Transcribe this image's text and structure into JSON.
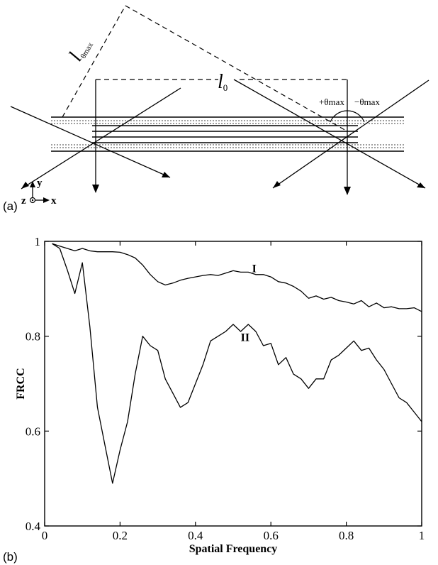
{
  "figure": {
    "panel_a": {
      "letter": "(a)",
      "labels": {
        "l_theta_main": "l",
        "l_theta_sub": "θmax",
        "l0_main": "l",
        "l0_sub": "0",
        "plus_theta": "+θmax",
        "minus_theta": "−θmax",
        "axis_y": "y",
        "axis_x": "x",
        "axis_z": "z"
      }
    },
    "panel_b": {
      "letter": "(b)"
    }
  },
  "chart_data": {
    "type": "line",
    "xlabel": "Spatial Frequency",
    "ylabel": "FRCC",
    "xlim": [
      0,
      1
    ],
    "ylim": [
      0.4,
      1
    ],
    "xticks": [
      0,
      0.2,
      0.4,
      0.6,
      0.8,
      1
    ],
    "yticks": [
      0.4,
      0.6,
      0.8,
      1
    ],
    "xtick_labels": [
      "0",
      "0.2",
      "0.4",
      "0.6",
      "0.8",
      "1"
    ],
    "ytick_labels": [
      "0.4",
      "0.6",
      "0.8",
      "1"
    ],
    "grid": false,
    "series": [
      {
        "name": "I",
        "label_at": [
          0.55,
          0.935
        ],
        "x": [
          0.02,
          0.04,
          0.06,
          0.08,
          0.1,
          0.12,
          0.14,
          0.16,
          0.18,
          0.2,
          0.22,
          0.24,
          0.26,
          0.28,
          0.3,
          0.32,
          0.34,
          0.36,
          0.38,
          0.4,
          0.42,
          0.44,
          0.46,
          0.48,
          0.5,
          0.52,
          0.54,
          0.56,
          0.58,
          0.6,
          0.62,
          0.64,
          0.66,
          0.68,
          0.7,
          0.72,
          0.74,
          0.76,
          0.78,
          0.8,
          0.82,
          0.84,
          0.86,
          0.88,
          0.9,
          0.92,
          0.94,
          0.96,
          0.98,
          1.0
        ],
        "y": [
          0.995,
          0.99,
          0.985,
          0.98,
          0.985,
          0.98,
          0.978,
          0.978,
          0.978,
          0.977,
          0.972,
          0.965,
          0.95,
          0.93,
          0.915,
          0.908,
          0.912,
          0.918,
          0.922,
          0.925,
          0.928,
          0.93,
          0.928,
          0.933,
          0.938,
          0.935,
          0.935,
          0.93,
          0.93,
          0.925,
          0.915,
          0.912,
          0.905,
          0.895,
          0.88,
          0.885,
          0.878,
          0.882,
          0.875,
          0.872,
          0.868,
          0.875,
          0.862,
          0.87,
          0.86,
          0.862,
          0.858,
          0.858,
          0.86,
          0.852
        ]
      },
      {
        "name": "II",
        "label_at": [
          0.52,
          0.79
        ],
        "x": [
          0.02,
          0.04,
          0.06,
          0.08,
          0.1,
          0.12,
          0.14,
          0.16,
          0.18,
          0.2,
          0.22,
          0.24,
          0.26,
          0.28,
          0.3,
          0.32,
          0.34,
          0.36,
          0.38,
          0.4,
          0.42,
          0.44,
          0.46,
          0.48,
          0.5,
          0.52,
          0.54,
          0.56,
          0.58,
          0.6,
          0.62,
          0.64,
          0.66,
          0.68,
          0.7,
          0.72,
          0.74,
          0.76,
          0.78,
          0.8,
          0.82,
          0.84,
          0.86,
          0.88,
          0.9,
          0.92,
          0.94,
          0.96,
          0.98,
          1.0
        ],
        "y": [
          0.995,
          0.985,
          0.94,
          0.89,
          0.955,
          0.82,
          0.65,
          0.57,
          0.49,
          0.56,
          0.62,
          0.72,
          0.8,
          0.78,
          0.77,
          0.71,
          0.68,
          0.65,
          0.66,
          0.7,
          0.74,
          0.79,
          0.8,
          0.81,
          0.825,
          0.81,
          0.825,
          0.81,
          0.78,
          0.785,
          0.74,
          0.755,
          0.72,
          0.71,
          0.69,
          0.71,
          0.71,
          0.75,
          0.76,
          0.775,
          0.79,
          0.77,
          0.775,
          0.75,
          0.73,
          0.7,
          0.67,
          0.66,
          0.64,
          0.62
        ]
      }
    ]
  }
}
